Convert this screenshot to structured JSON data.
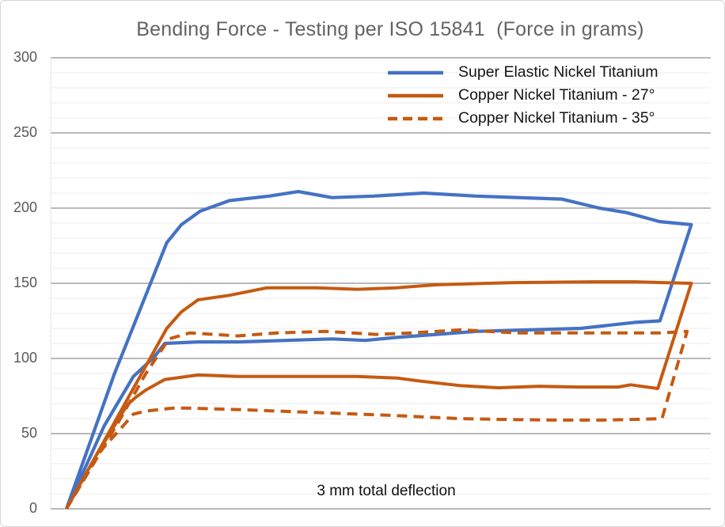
{
  "title": "Bending Force - Testing per ISO 15841  (Force in grams)",
  "annotation": "3 mm total deflection",
  "colors": {
    "blue_series": "#4472C4",
    "orange_series": "#C55A11",
    "title_text": "#636363",
    "axis_text": "#595959",
    "legend_text": "#151515",
    "grid_major": "#8f8f8f",
    "grid_minor": "#ebebeb",
    "plot_left_border": "#e6e6e6",
    "canvas_border": "#d6d6d6"
  },
  "chart_data": {
    "type": "line",
    "title": "Bending Force - Testing per ISO 15841  (Force in grams)",
    "annotation": "3 mm total deflection",
    "xlabel": "",
    "ylabel": "",
    "x_unit": "deflection (mm), unlabeled axis; loop out to 3 mm and back",
    "y_unit": "force (grams)",
    "xlim": [
      0,
      3
    ],
    "ylim": [
      0,
      300
    ],
    "y_ticks": [
      0,
      50,
      100,
      150,
      200,
      250,
      300
    ],
    "grid": {
      "major_step": 50,
      "minor_step": 10,
      "major_color": "#8f8f8f",
      "minor_color": "#ebebeb"
    },
    "legend_position": "top-right",
    "series": [
      {
        "name": "Super Elastic Nickel Titanium",
        "color": "#4472C4",
        "style": "solid",
        "width": 4.2,
        "load": [
          [
            0,
            0
          ],
          [
            0.23,
            90
          ],
          [
            0.48,
            177
          ],
          [
            0.55,
            189
          ],
          [
            0.64,
            198
          ],
          [
            0.78,
            205
          ],
          [
            0.97,
            208
          ],
          [
            1.11,
            211
          ],
          [
            1.27,
            207
          ],
          [
            1.47,
            208
          ],
          [
            1.71,
            210
          ],
          [
            1.96,
            208
          ],
          [
            2.37,
            206
          ],
          [
            2.55,
            200
          ],
          [
            2.68,
            197
          ],
          [
            2.84,
            191
          ],
          [
            2.99,
            189
          ]
        ],
        "unload": [
          [
            0,
            0
          ],
          [
            0.18,
            55
          ],
          [
            0.32,
            88
          ],
          [
            0.42,
            101
          ],
          [
            0.47,
            110
          ],
          [
            0.63,
            111
          ],
          [
            0.82,
            111
          ],
          [
            1.05,
            112
          ],
          [
            1.27,
            113
          ],
          [
            1.43,
            112
          ],
          [
            1.58,
            114
          ],
          [
            1.77,
            116
          ],
          [
            1.96,
            118
          ],
          [
            2.21,
            119
          ],
          [
            2.46,
            120
          ],
          [
            2.59,
            122
          ],
          [
            2.72,
            124
          ],
          [
            2.84,
            125
          ]
        ]
      },
      {
        "name": "Copper Nickel Titanium - 27°",
        "color": "#C55A11",
        "style": "solid",
        "width": 4,
        "load": [
          [
            0,
            0
          ],
          [
            0.36,
            90
          ],
          [
            0.48,
            120
          ],
          [
            0.55,
            131
          ],
          [
            0.63,
            139
          ],
          [
            0.78,
            142
          ],
          [
            0.96,
            147
          ],
          [
            1.2,
            147
          ],
          [
            1.39,
            146
          ],
          [
            1.58,
            147
          ],
          [
            1.77,
            149
          ],
          [
            2.02,
            150
          ],
          [
            2.15,
            150.5
          ],
          [
            2.53,
            151
          ],
          [
            2.72,
            151
          ],
          [
            2.85,
            150.5
          ],
          [
            2.99,
            150
          ]
        ],
        "unload": [
          [
            0,
            0
          ],
          [
            0.14,
            35
          ],
          [
            0.29,
            69
          ],
          [
            0.33,
            74
          ],
          [
            0.38,
            79
          ],
          [
            0.47,
            86
          ],
          [
            0.63,
            89
          ],
          [
            0.82,
            88
          ],
          [
            1.01,
            88
          ],
          [
            1.2,
            88
          ],
          [
            1.39,
            88
          ],
          [
            1.58,
            87
          ],
          [
            1.69,
            85
          ],
          [
            1.88,
            82
          ],
          [
            2.07,
            80.5
          ],
          [
            2.26,
            81.5
          ],
          [
            2.45,
            81
          ],
          [
            2.64,
            81
          ],
          [
            2.7,
            82.5
          ],
          [
            2.83,
            80
          ]
        ]
      },
      {
        "name": "Copper Nickel Titanium - 35°",
        "color": "#C55A11",
        "style": "dashed",
        "width": 4,
        "load": [
          [
            0,
            0
          ],
          [
            0.25,
            58
          ],
          [
            0.38,
            90
          ],
          [
            0.49,
            113
          ],
          [
            0.59,
            117
          ],
          [
            0.82,
            115
          ],
          [
            1.01,
            117
          ],
          [
            1.24,
            118
          ],
          [
            1.48,
            116
          ],
          [
            1.65,
            117
          ],
          [
            1.89,
            119
          ],
          [
            2.15,
            117
          ],
          [
            2.41,
            117
          ],
          [
            2.64,
            117
          ],
          [
            2.84,
            117
          ],
          [
            2.97,
            118
          ]
        ],
        "unload": [
          [
            0,
            0
          ],
          [
            0.16,
            38
          ],
          [
            0.27,
            55
          ],
          [
            0.32,
            63
          ],
          [
            0.38,
            65
          ],
          [
            0.51,
            67
          ],
          [
            0.57,
            67
          ],
          [
            0.82,
            66
          ],
          [
            1.01,
            65
          ],
          [
            1.2,
            64
          ],
          [
            1.39,
            63
          ],
          [
            1.58,
            62
          ],
          [
            1.72,
            61
          ],
          [
            1.88,
            60
          ],
          [
            2.07,
            59.5
          ],
          [
            2.34,
            59
          ],
          [
            2.56,
            59
          ],
          [
            2.72,
            59.5
          ],
          [
            2.85,
            60
          ]
        ]
      }
    ]
  }
}
